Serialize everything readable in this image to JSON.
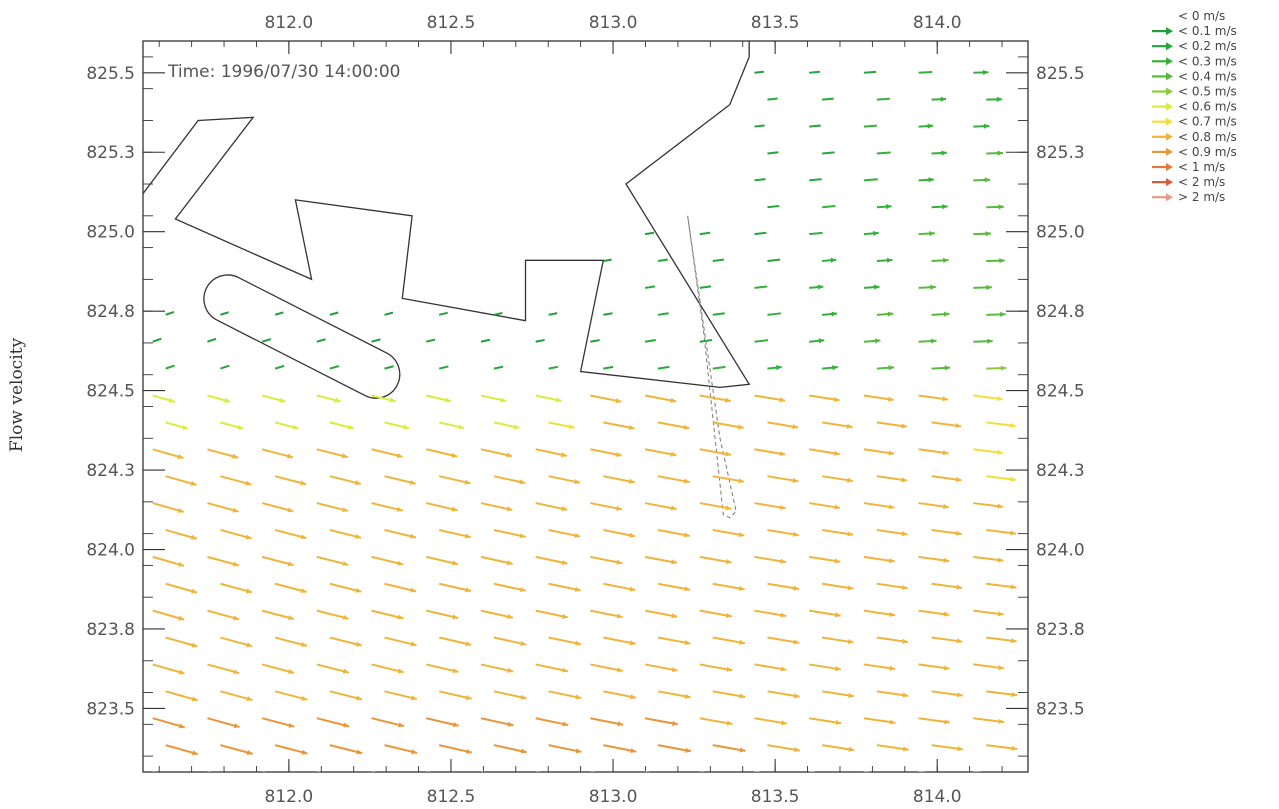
{
  "chart_data": {
    "type": "quiver",
    "title": "",
    "annotation": "Time: 1996/07/30 14:00:00",
    "ylabel": "Flow velocity",
    "xlabel": "",
    "xlim": [
      811.55,
      814.28
    ],
    "ylim": [
      823.3,
      825.6
    ],
    "x_ticks": [
      812.0,
      812.5,
      813.0,
      813.5,
      814.0
    ],
    "x_tick_labels": [
      "812.0",
      "812.5",
      "813.0",
      "813.5",
      "814.0"
    ],
    "y_ticks": [
      823.5,
      823.75,
      824.0,
      824.25,
      824.5,
      824.75,
      825.0,
      825.25,
      825.5
    ],
    "y_tick_labels": [
      "823.5",
      "823.8",
      "824.0",
      "824.3",
      "824.5",
      "824.8",
      "825.0",
      "825.3",
      "825.5"
    ],
    "legend": {
      "placement": "top-right",
      "entries": [
        {
          "label": "< 0 m/s",
          "color": "#2e8b57"
        },
        {
          "label": "< 0.1 m/s",
          "color": "#1f9e3a"
        },
        {
          "label": "< 0.2 m/s",
          "color": "#25a83a"
        },
        {
          "label": "< 0.3 m/s",
          "color": "#33b13a"
        },
        {
          "label": "< 0.4 m/s",
          "color": "#56bb3a"
        },
        {
          "label": "< 0.5 m/s",
          "color": "#8acb3c"
        },
        {
          "label": "< 0.6 m/s",
          "color": "#d9ec40"
        },
        {
          "label": "< 0.7 m/s",
          "color": "#f2df3a"
        },
        {
          "label": "< 0.8 m/s",
          "color": "#efb43a"
        },
        {
          "label": "< 0.9 m/s",
          "color": "#e9963a"
        },
        {
          "label": "< 1 m/s",
          "color": "#e2783a"
        },
        {
          "label": "< 2 m/s",
          "color": "#d95a3a"
        },
        {
          "label": "> 2 m/s",
          "color": "#e59a8a"
        }
      ]
    },
    "field_sampling": {
      "x_range": [
        811.58,
        814.28
      ],
      "y_range": [
        823.3,
        825.5
      ],
      "columns": 17,
      "rows": 27
    },
    "structures": {
      "land_outline": [
        [
          811.55,
          825.12
        ],
        [
          811.72,
          825.35
        ],
        [
          811.89,
          825.36
        ],
        [
          811.65,
          825.04
        ],
        [
          812.07,
          824.85
        ],
        [
          812.02,
          825.1
        ],
        [
          812.38,
          825.05
        ],
        [
          812.35,
          824.79
        ],
        [
          812.73,
          824.72
        ],
        [
          812.73,
          824.91
        ],
        [
          812.97,
          824.91
        ],
        [
          812.9,
          824.56
        ],
        [
          813.33,
          824.51
        ],
        [
          813.42,
          824.52
        ],
        [
          813.04,
          825.15
        ],
        [
          813.36,
          825.4
        ],
        [
          813.42,
          825.55
        ],
        [
          813.42,
          825.62
        ]
      ],
      "breakwater_dashed": [
        [
          813.23,
          825.05
        ],
        [
          813.33,
          824.35
        ],
        [
          813.38,
          824.12
        ],
        [
          813.36,
          824.1
        ],
        [
          813.34,
          824.11
        ],
        [
          813.28,
          824.68
        ],
        [
          813.23,
          825.05
        ]
      ],
      "island": {
        "center_x": 812.04,
        "center_y": 824.67,
        "rx": 0.33,
        "ry": 0.075,
        "angle_deg": -27
      }
    }
  }
}
